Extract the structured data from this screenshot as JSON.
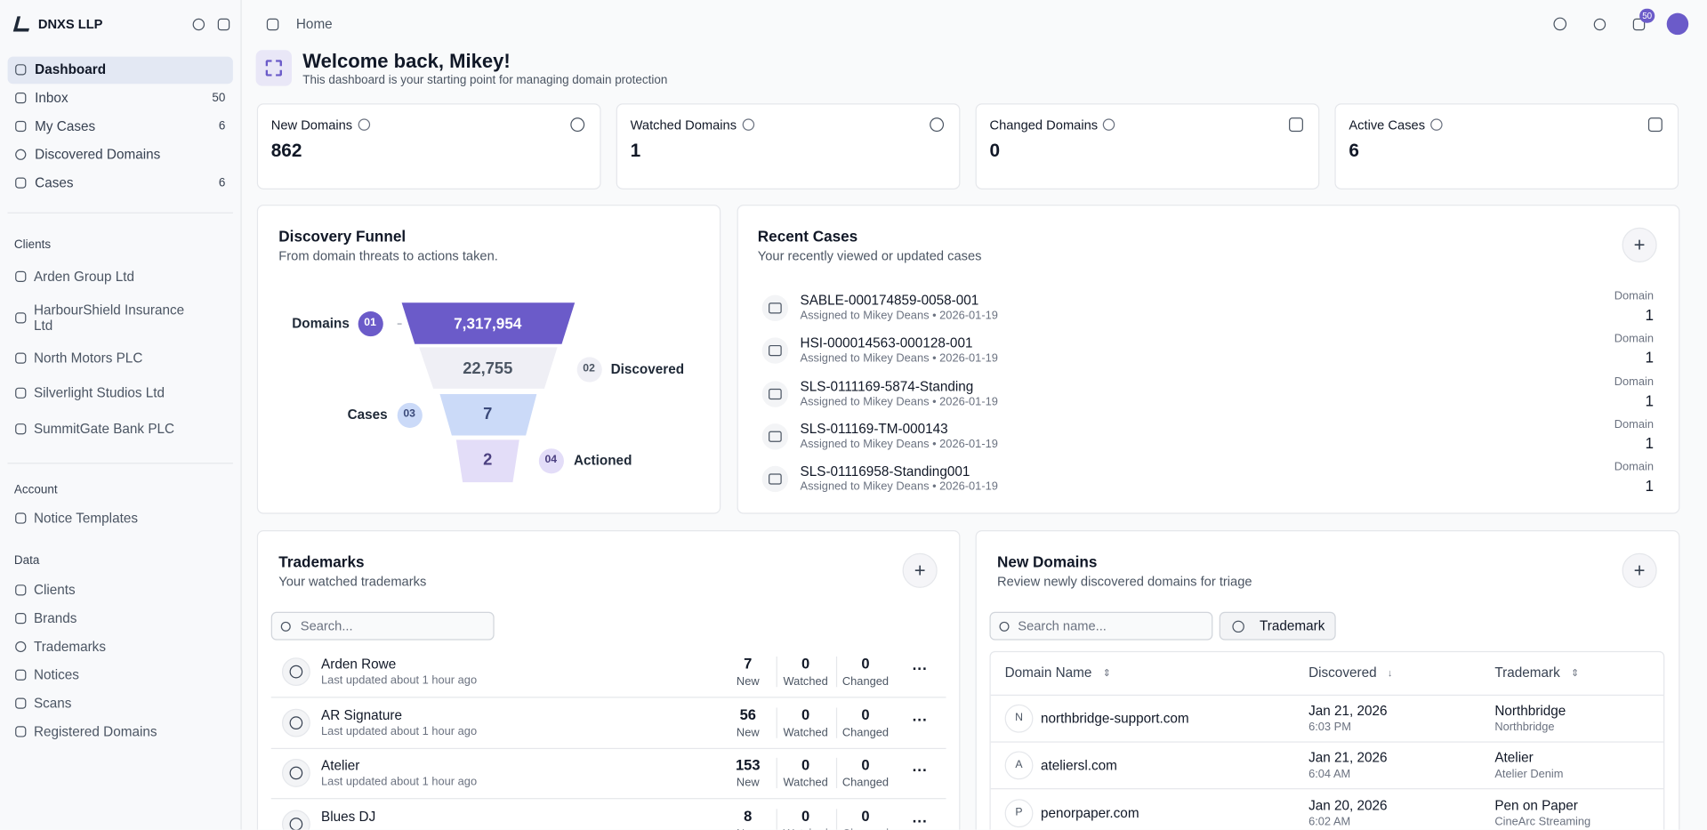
{
  "sidebar": {
    "org": "DNXS LLP",
    "nav": [
      {
        "label": "Dashboard"
      },
      {
        "label": "Inbox",
        "count": 50
      },
      {
        "label": "My Cases",
        "count": 6
      },
      {
        "label": "Discovered Domains"
      },
      {
        "label": "Cases",
        "count": 6
      }
    ],
    "sections": [
      {
        "title": "Clients",
        "items": [
          "Arden Group Ltd",
          "HarbourShield Insurance Ltd",
          "North Motors PLC",
          "Silverlight Studios Ltd",
          "SummitGate Bank PLC"
        ]
      },
      {
        "title": "Account",
        "items": [
          "Notice Templates"
        ]
      },
      {
        "title": "Data",
        "items": [
          "Clients",
          "Brands",
          "Trademarks",
          "Notices",
          "Scans",
          "Registered Domains"
        ]
      }
    ]
  },
  "topbar": {
    "breadcrumb": "Home",
    "notifications": 50
  },
  "welcome": {
    "title": "Welcome back, Mikey!",
    "subtitle": "This dashboard is your starting point for managing domain protection"
  },
  "stats": [
    {
      "label": "New Domains",
      "value": 862
    },
    {
      "label": "Watched Domains",
      "value": 1
    },
    {
      "label": "Changed Domains",
      "value": 0
    },
    {
      "label": "Active Cases",
      "value": 6
    }
  ],
  "funnel": {
    "title": "Discovery Funnel",
    "subtitle": "From domain threats to actions taken.",
    "stages": [
      {
        "label": "Domains",
        "step": "01",
        "value": "7,317,954"
      },
      {
        "label": "Discovered",
        "step": "02",
        "value": "22,755"
      },
      {
        "label": "Cases",
        "step": "03",
        "value": "7"
      },
      {
        "label": "Actioned",
        "step": "04",
        "value": "2"
      }
    ]
  },
  "recent_cases": {
    "title": "Recent Cases",
    "subtitle": "Your recently viewed or updated cases",
    "rows": [
      {
        "id": "SABLE-000174859-0058-001",
        "assigned": "Assigned to Mikey Deans • 2026-01-19",
        "kind": "Domain",
        "count": 1
      },
      {
        "id": "HSI-000014563-000128-001",
        "assigned": "Assigned to Mikey Deans • 2026-01-19",
        "kind": "Domain",
        "count": 1
      },
      {
        "id": "SLS-0111169-5874-Standing",
        "assigned": "Assigned to Mikey Deans • 2026-01-19",
        "kind": "Domain",
        "count": 1
      },
      {
        "id": "SLS-011169-TM-000143",
        "assigned": "Assigned to Mikey Deans • 2026-01-19",
        "kind": "Domain",
        "count": 1
      },
      {
        "id": "SLS-01116958-Standing001",
        "assigned": "Assigned to Mikey Deans • 2026-01-19",
        "kind": "Domain",
        "count": 1
      }
    ]
  },
  "trademarks": {
    "title": "Trademarks",
    "subtitle": "Your watched trademarks",
    "search_placeholder": "Search...",
    "count_labels": [
      "New",
      "Watched",
      "Changed"
    ],
    "rows": [
      {
        "name": "Arden Rowe",
        "updated": "Last updated about 1 hour ago",
        "counts": [
          7,
          0,
          0
        ]
      },
      {
        "name": "AR Signature",
        "updated": "Last updated about 1 hour ago",
        "counts": [
          56,
          0,
          0
        ]
      },
      {
        "name": "Atelier",
        "updated": "Last updated about 1 hour ago",
        "counts": [
          153,
          0,
          0
        ]
      },
      {
        "name": "Blues DJ",
        "counts": [
          8,
          0,
          0
        ]
      }
    ]
  },
  "new_domains": {
    "title": "New Domains",
    "subtitle": "Review newly discovered domains for triage",
    "search_placeholder": "Search name...",
    "filter": "Trademark",
    "columns": [
      "Domain Name",
      "Discovered",
      "Trademark"
    ],
    "rows": [
      {
        "initial": "N",
        "domain": "northbridge-support.com",
        "date": "Jan 21, 2026",
        "time": "6:03 PM",
        "trademark": "Northbridge",
        "brand": "Northbridge"
      },
      {
        "initial": "A",
        "domain": "ateliersl.com",
        "date": "Jan 21, 2026",
        "time": "6:04 AM",
        "trademark": "Atelier",
        "brand": "Atelier Denim"
      },
      {
        "initial": "P",
        "domain": "penorpaper.com",
        "date": "Jan 20, 2026",
        "time": "6:02 AM",
        "trademark": "Pen on Paper",
        "brand": "CineArc Streaming"
      }
    ]
  }
}
